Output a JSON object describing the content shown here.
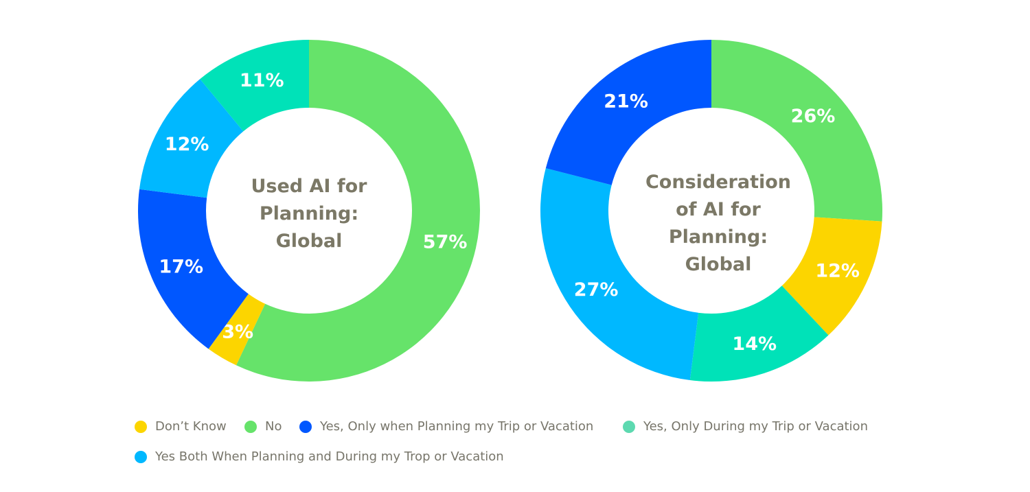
{
  "colors": {
    "dont_know": "#fcd500",
    "no": "#66e36a",
    "planning": "#0057ff",
    "during": "#00e2b8",
    "both": "#00b8ff"
  },
  "legend": [
    {
      "key": "dont_know",
      "label": "Don’t Know"
    },
    {
      "key": "no",
      "label": "No"
    },
    {
      "key": "planning",
      "label": "Yes, Only when Planning my Trip or Vacation"
    },
    {
      "key": "during",
      "label": "Yes, Only During my Trip or Vacation"
    },
    {
      "key": "both",
      "label": "Yes Both When Planning and During my Trop or Vacation"
    }
  ],
  "chart_data": [
    {
      "type": "pie",
      "title": "Used AI for Planning: Global",
      "slices": [
        {
          "key": "no",
          "value": 57,
          "label": "57%"
        },
        {
          "key": "dont_know",
          "value": 3,
          "label": "3%"
        },
        {
          "key": "planning",
          "value": 17,
          "label": "17%"
        },
        {
          "key": "both",
          "value": 12,
          "label": "12%"
        },
        {
          "key": "during",
          "value": 11,
          "label": "11%"
        }
      ]
    },
    {
      "type": "pie",
      "title": "Consideration of AI for Planning: Global",
      "slices": [
        {
          "key": "no",
          "value": 26,
          "label": "26%"
        },
        {
          "key": "dont_know",
          "value": 12,
          "label": "12%"
        },
        {
          "key": "during",
          "value": 14,
          "label": "14%"
        },
        {
          "key": "both",
          "value": 27,
          "label": "27%"
        },
        {
          "key": "planning",
          "value": 21,
          "label": "21%"
        }
      ]
    }
  ]
}
